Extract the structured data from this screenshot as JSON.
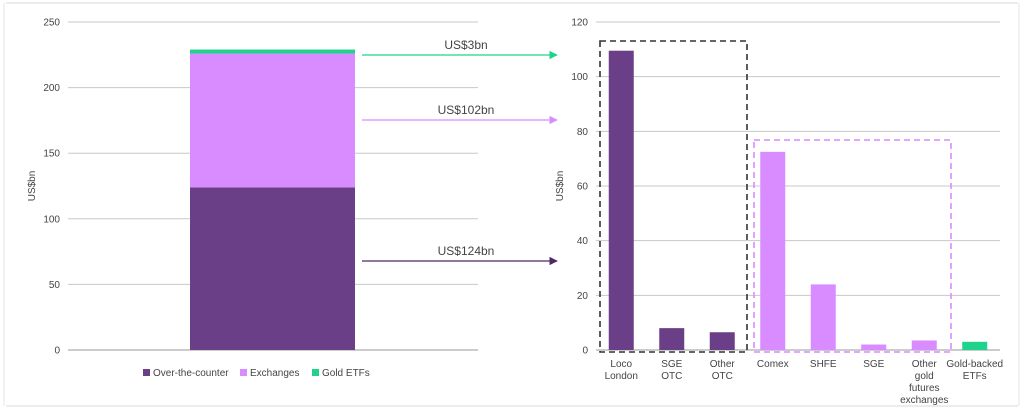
{
  "chart_data": [
    {
      "type": "bar",
      "stacked": true,
      "categories": [
        ""
      ],
      "series": [
        {
          "name": "Over-the-counter",
          "values": [
            124
          ],
          "color": "#6b3f87"
        },
        {
          "name": "Exchanges",
          "values": [
            102
          ],
          "color": "#d98cff"
        },
        {
          "name": "Gold ETFs",
          "values": [
            3
          ],
          "color": "#1fd38a"
        }
      ],
      "ylabel": "US$bn",
      "ylim": [
        0,
        250
      ],
      "yticks": [
        0,
        50,
        100,
        150,
        200,
        250
      ],
      "grid": true,
      "legend": "bottom",
      "annotations": [
        {
          "text": "US$3bn",
          "series": "Gold ETFs",
          "color": "#1fd38a"
        },
        {
          "text": "US$102bn",
          "series": "Exchanges",
          "color": "#d98cff"
        },
        {
          "text": "US$124bn",
          "series": "Over-the-counter",
          "color": "#4a2a66"
        }
      ]
    },
    {
      "type": "bar",
      "categories": [
        [
          "Loco",
          "London"
        ],
        [
          "SGE",
          "OTC"
        ],
        [
          "Other",
          "OTC"
        ],
        [
          "Comex"
        ],
        [
          "SHFE"
        ],
        [
          "SGE"
        ],
        [
          "Other",
          "gold",
          "futures",
          "exchanges"
        ],
        [
          "Gold-backed",
          "ETFs"
        ]
      ],
      "values": [
        109.5,
        8,
        6.5,
        72.5,
        24,
        2,
        3.5,
        3
      ],
      "colors": [
        "#6b3f87",
        "#6b3f87",
        "#6b3f87",
        "#d98cff",
        "#d98cff",
        "#d98cff",
        "#d98cff",
        "#1fd38a"
      ],
      "ylabel": "US$bn",
      "ylim": [
        0,
        120
      ],
      "yticks": [
        0,
        20,
        40,
        60,
        80,
        100,
        120
      ],
      "grid": true,
      "groups": [
        {
          "name": "otc-group",
          "from": 0,
          "to": 2,
          "color": "#333333"
        },
        {
          "name": "exchanges-group",
          "from": 3,
          "to": 6,
          "color": "#d98cff"
        }
      ]
    }
  ]
}
